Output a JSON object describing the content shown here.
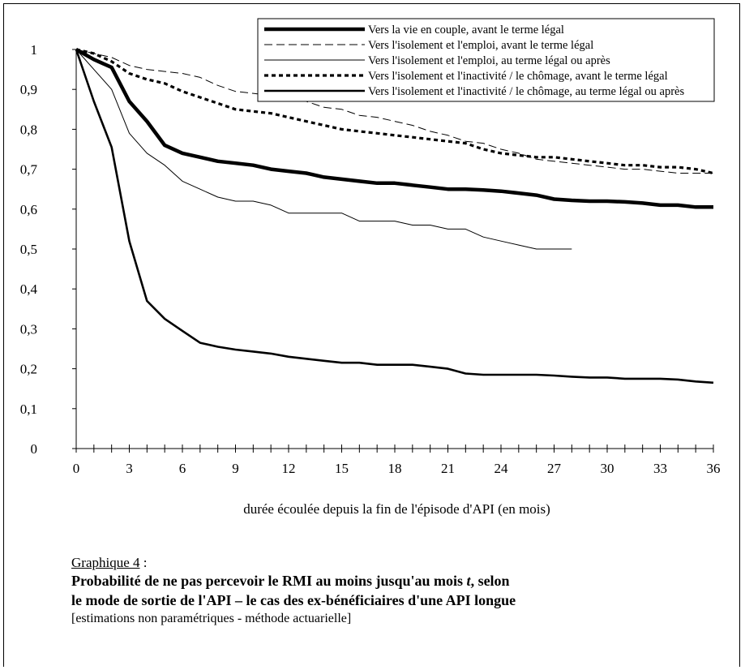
{
  "chart_data": {
    "type": "line",
    "title": "",
    "xlabel": "durée écoulée depuis la fin de l'épisode d'API  (en mois)",
    "ylabel": "",
    "xlim": [
      0,
      36
    ],
    "ylim": [
      0,
      1
    ],
    "xticks": [
      "0",
      "3",
      "6",
      "9",
      "12",
      "15",
      "18",
      "21",
      "24",
      "27",
      "30",
      "33",
      "36"
    ],
    "yticks": [
      "0",
      "0,1",
      "0,2",
      "0,3",
      "0,4",
      "0,5",
      "0,6",
      "0,7",
      "0,8",
      "0,9",
      "1"
    ],
    "grid": false,
    "legend_position": "top-right",
    "series": [
      {
        "name": "Vers la vie en couple, avant le terme légal",
        "style": "thick-solid",
        "color": "#000000",
        "x": [
          0,
          1,
          2,
          3,
          4,
          5,
          6,
          7,
          8,
          9,
          10,
          11,
          12,
          13,
          14,
          15,
          16,
          17,
          18,
          19,
          20,
          21,
          22,
          23,
          24,
          25,
          26,
          27,
          28,
          29,
          30,
          31,
          32,
          33,
          34,
          35,
          36
        ],
        "y": [
          1,
          0.975,
          0.955,
          0.87,
          0.82,
          0.76,
          0.74,
          0.73,
          0.72,
          0.715,
          0.71,
          0.7,
          0.695,
          0.69,
          0.68,
          0.675,
          0.67,
          0.665,
          0.665,
          0.66,
          0.655,
          0.65,
          0.65,
          0.648,
          0.645,
          0.64,
          0.635,
          0.625,
          0.622,
          0.62,
          0.62,
          0.618,
          0.615,
          0.61,
          0.61,
          0.605,
          0.605
        ]
      },
      {
        "name": "Vers l'isolement et l'emploi, avant le terme légal",
        "style": "thin-dashed",
        "color": "#000000",
        "x": [
          0,
          1,
          2,
          3,
          4,
          5,
          6,
          7,
          8,
          9,
          10,
          11,
          12,
          13,
          14,
          15,
          16,
          17,
          18,
          19,
          20,
          21,
          22,
          23,
          24,
          25,
          26,
          27,
          28,
          29,
          30,
          31,
          32,
          33,
          34,
          35,
          36
        ],
        "y": [
          1,
          0.99,
          0.98,
          0.96,
          0.95,
          0.945,
          0.94,
          0.93,
          0.91,
          0.895,
          0.89,
          0.885,
          0.875,
          0.87,
          0.855,
          0.85,
          0.835,
          0.83,
          0.82,
          0.81,
          0.795,
          0.785,
          0.77,
          0.765,
          0.75,
          0.74,
          0.725,
          0.72,
          0.715,
          0.71,
          0.705,
          0.7,
          0.7,
          0.695,
          0.69,
          0.69,
          0.69
        ]
      },
      {
        "name": "Vers l'isolement et l'emploi, au terme légal ou après",
        "style": "thin-solid",
        "color": "#000000",
        "x": [
          0,
          1,
          2,
          3,
          4,
          5,
          6,
          7,
          8,
          9,
          10,
          11,
          12,
          13,
          14,
          15,
          16,
          17,
          18,
          19,
          20,
          21,
          22,
          23,
          24,
          25,
          26,
          27,
          28
        ],
        "y": [
          1,
          0.95,
          0.9,
          0.79,
          0.74,
          0.71,
          0.67,
          0.65,
          0.63,
          0.62,
          0.62,
          0.61,
          0.59,
          0.59,
          0.59,
          0.59,
          0.57,
          0.57,
          0.57,
          0.56,
          0.56,
          0.55,
          0.55,
          0.53,
          0.52,
          0.51,
          0.5,
          0.5,
          0.5
        ]
      },
      {
        "name": "Vers l'isolement et l'inactivité / le chômage, avant le terme légal",
        "style": "thick-dotted",
        "color": "#000000",
        "x": [
          0,
          1,
          2,
          3,
          4,
          5,
          6,
          7,
          8,
          9,
          10,
          11,
          12,
          13,
          14,
          15,
          16,
          17,
          18,
          19,
          20,
          21,
          22,
          23,
          24,
          25,
          26,
          27,
          28,
          29,
          30,
          31,
          32,
          33,
          34,
          35,
          36
        ],
        "y": [
          1,
          0.99,
          0.97,
          0.94,
          0.925,
          0.915,
          0.895,
          0.88,
          0.865,
          0.85,
          0.845,
          0.84,
          0.83,
          0.82,
          0.81,
          0.8,
          0.795,
          0.79,
          0.785,
          0.78,
          0.775,
          0.77,
          0.765,
          0.75,
          0.74,
          0.735,
          0.73,
          0.73,
          0.725,
          0.72,
          0.715,
          0.71,
          0.71,
          0.705,
          0.705,
          0.7,
          0.69
        ]
      },
      {
        "name": "Vers l'isolement et l'inactivité / le chômage, au terme légal ou après",
        "style": "medium-solid",
        "color": "#000000",
        "x": [
          0,
          1,
          2,
          3,
          4,
          5,
          6,
          7,
          8,
          9,
          10,
          11,
          12,
          13,
          14,
          15,
          16,
          17,
          18,
          19,
          20,
          21,
          22,
          23,
          24,
          25,
          26,
          27,
          28,
          29,
          30,
          31,
          32,
          33,
          34,
          35,
          36
        ],
        "y": [
          1,
          0.87,
          0.755,
          0.52,
          0.37,
          0.325,
          0.295,
          0.265,
          0.255,
          0.248,
          0.243,
          0.238,
          0.23,
          0.225,
          0.22,
          0.215,
          0.215,
          0.21,
          0.21,
          0.21,
          0.205,
          0.2,
          0.188,
          0.185,
          0.185,
          0.185,
          0.185,
          0.183,
          0.18,
          0.178,
          0.178,
          0.175,
          0.175,
          0.175,
          0.173,
          0.168,
          0.165
        ]
      }
    ]
  },
  "caption": {
    "label": "Graphique 4",
    "label_suffix": " :",
    "title_line1_a": "Probabilité de ne pas percevoir le RMI au moins jusqu'au mois ",
    "title_line1_t": "t",
    "title_line1_b": ", selon",
    "title_line2": "le mode de sortie de l'API  –  le cas des ex-bénéficiaires d'une API longue",
    "note": "[estimations non paramétriques - méthode actuarielle]"
  }
}
